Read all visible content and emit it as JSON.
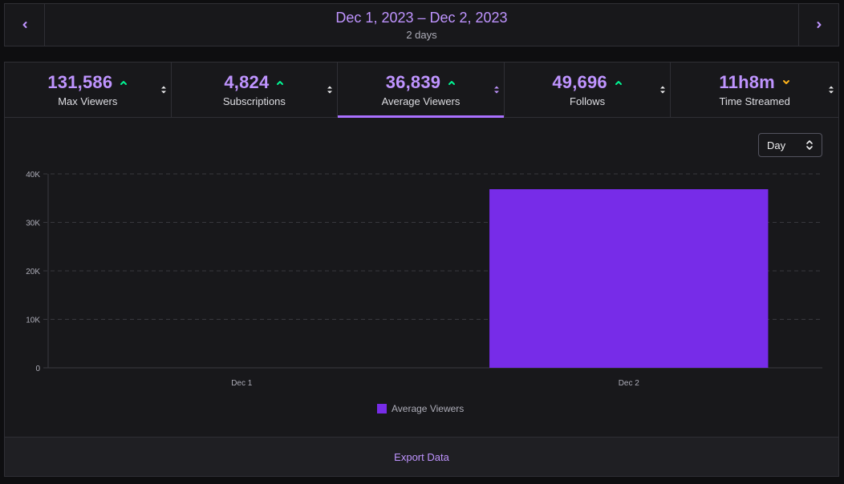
{
  "header": {
    "date_range": "Dec 1, 2023 – Dec 2, 2023",
    "duration": "2 days",
    "prev_icon": "chevron-left-icon",
    "next_icon": "chevron-right-icon"
  },
  "stats": [
    {
      "value": "131,586",
      "label": "Max Viewers",
      "trend": "up",
      "active": false
    },
    {
      "value": "4,824",
      "label": "Subscriptions",
      "trend": "up",
      "active": false
    },
    {
      "value": "36,839",
      "label": "Average Viewers",
      "trend": "up",
      "active": true
    },
    {
      "value": "49,696",
      "label": "Follows",
      "trend": "up",
      "active": false
    },
    {
      "value": "11h8m",
      "label": "Time Streamed",
      "trend": "down",
      "active": false
    }
  ],
  "colors": {
    "accent": "#bf94ff",
    "bar": "#772ce8",
    "trend_up": "#00f593",
    "trend_down": "#ffb31a"
  },
  "granularity": {
    "selected": "Day"
  },
  "chart_data": {
    "type": "bar",
    "title": "",
    "xlabel": "",
    "ylabel": "",
    "categories": [
      "Dec 1",
      "Dec 2"
    ],
    "series": [
      {
        "name": "Average Viewers",
        "values": [
          0,
          36839
        ]
      }
    ],
    "ylim": [
      0,
      40000
    ],
    "yticks": [
      0,
      10000,
      20000,
      30000,
      40000
    ],
    "ytick_labels": [
      "0",
      "10K",
      "20K",
      "30K",
      "40K"
    ],
    "grid": true,
    "legend": "bottom-center"
  },
  "footer": {
    "export_label": "Export Data"
  }
}
